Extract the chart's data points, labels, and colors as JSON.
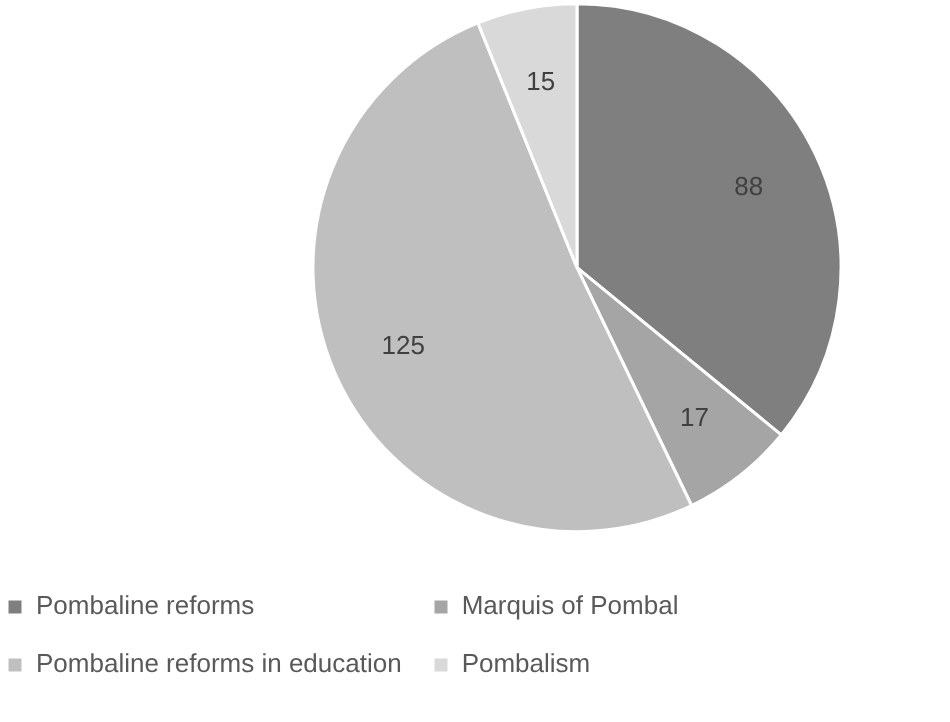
{
  "chart_data": {
    "type": "pie",
    "categories": [
      "Pombaline reforms",
      "Marquis of Pombal",
      "Pombaline reforms in education",
      "Pombalism"
    ],
    "values": [
      88,
      17,
      125,
      15
    ],
    "colors": [
      "#7f7f7f",
      "#a5a5a5",
      "#bfbfbf",
      "#d9d9d9"
    ],
    "data_labels": true,
    "legend": "bottom"
  }
}
